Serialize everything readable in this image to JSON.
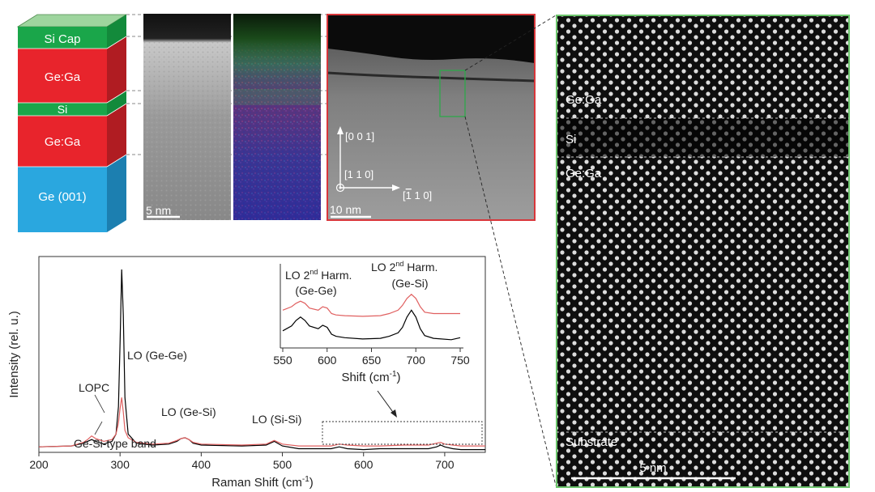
{
  "layer_stack": {
    "layers": [
      "Si Cap",
      "Ge:Ga",
      "Si",
      "Ge:Ga",
      "Ge (001)"
    ],
    "colors": {
      "si": "#1aa64a",
      "gega": "#e8242c",
      "substrate": "#2aa7df"
    }
  },
  "stem_strip": {
    "scalebar": "5 nm"
  },
  "eds_strip": {},
  "overview": {
    "axes": [
      "[0 0 1]",
      "[1 1 0]",
      "[Ā1 1 0]"
    ],
    "axis_parts": {
      "a3_open": "[",
      "a3_bar": "1",
      "a3_rest": " 1 0]"
    },
    "scalebar": "10 nm"
  },
  "hrstem": {
    "labels": [
      "Ge:Ga",
      "Si",
      "Ge:Ga",
      "Substrate"
    ],
    "scalebar": "5 nm"
  },
  "raman": {
    "xlabel_main": "Raman Shift (cm",
    "xlabel_sup": "-1",
    "xlabel_close": ")",
    "ylabel": "Intensity (rel. u.)",
    "annotations": [
      "LOPC",
      "LO (Ge-Ge)",
      "LO (Ge-Si)",
      "LO (Si-Si)",
      "Ge-Si-type band"
    ],
    "inset": {
      "label1_a": "LO 2",
      "label1_sup": "nd",
      "label1_b": " Harm.",
      "label1_c": "(Ge-Ge)",
      "label2_a": "LO 2",
      "label2_sup": "nd",
      "label2_b": " Harm.",
      "label2_c": "(Ge-Si)",
      "xlabel_main": "Shift (cm",
      "xlabel_sup": "-1",
      "xlabel_close": ")"
    }
  },
  "chart_data": [
    {
      "type": "line",
      "title": "",
      "xlabel": "Raman Shift (cm-1)",
      "ylabel": "Intensity (rel. u.)",
      "xlim": [
        200,
        750
      ],
      "xticks": [
        200,
        300,
        400,
        500,
        600,
        700
      ],
      "yticks_shown": false,
      "series": [
        {
          "color": "#000000",
          "x": [
            200,
            240,
            255,
            260,
            265,
            270,
            280,
            290,
            295,
            298,
            300,
            302,
            304,
            306,
            310,
            320,
            340,
            360,
            370,
            375,
            380,
            385,
            390,
            400,
            450,
            480,
            490,
            500,
            520,
            560,
            570,
            580,
            600,
            620,
            650,
            680,
            690,
            695,
            700,
            710,
            720,
            750
          ],
          "y": [
            0.03,
            0.035,
            0.05,
            0.06,
            0.07,
            0.06,
            0.045,
            0.06,
            0.1,
            0.25,
            0.6,
            1.0,
            0.75,
            0.3,
            0.1,
            0.05,
            0.04,
            0.045,
            0.06,
            0.075,
            0.08,
            0.07,
            0.05,
            0.04,
            0.035,
            0.04,
            0.06,
            0.035,
            0.02,
            0.02,
            0.03,
            0.02,
            0.015,
            0.02,
            0.02,
            0.02,
            0.03,
            0.04,
            0.03,
            0.02,
            0.015,
            0.015
          ]
        },
        {
          "color": "#e06060",
          "x": [
            200,
            240,
            255,
            260,
            265,
            270,
            280,
            290,
            295,
            298,
            300,
            302,
            304,
            306,
            310,
            320,
            340,
            360,
            370,
            375,
            380,
            385,
            390,
            400,
            450,
            480,
            490,
            500,
            520,
            560,
            570,
            580,
            600,
            620,
            650,
            680,
            690,
            695,
            700,
            710,
            720,
            750
          ],
          "y": [
            0.03,
            0.035,
            0.055,
            0.07,
            0.09,
            0.075,
            0.06,
            0.07,
            0.1,
            0.16,
            0.24,
            0.3,
            0.22,
            0.12,
            0.08,
            0.055,
            0.045,
            0.05,
            0.065,
            0.075,
            0.08,
            0.07,
            0.055,
            0.045,
            0.04,
            0.045,
            0.065,
            0.045,
            0.035,
            0.035,
            0.045,
            0.04,
            0.035,
            0.035,
            0.04,
            0.04,
            0.05,
            0.055,
            0.045,
            0.04,
            0.035,
            0.035
          ]
        }
      ]
    },
    {
      "type": "line",
      "title": "",
      "xlabel": "Shift (cm-1)",
      "ylabel": "",
      "xlim": [
        550,
        750
      ],
      "xticks": [
        550,
        600,
        650,
        700,
        750
      ],
      "series": [
        {
          "color": "#e06060",
          "x": [
            550,
            560,
            565,
            570,
            575,
            580,
            590,
            595,
            600,
            605,
            610,
            620,
            640,
            660,
            670,
            680,
            685,
            690,
            695,
            700,
            705,
            710,
            720,
            740,
            750
          ],
          "y": [
            0.55,
            0.6,
            0.65,
            0.68,
            0.65,
            0.58,
            0.55,
            0.6,
            0.58,
            0.5,
            0.48,
            0.47,
            0.46,
            0.47,
            0.5,
            0.55,
            0.62,
            0.72,
            0.78,
            0.72,
            0.6,
            0.52,
            0.5,
            0.5,
            0.5
          ]
        },
        {
          "color": "#000000",
          "x": [
            550,
            560,
            565,
            570,
            575,
            580,
            590,
            595,
            600,
            605,
            610,
            620,
            640,
            660,
            670,
            680,
            685,
            690,
            695,
            700,
            705,
            710,
            720,
            740,
            750
          ],
          "y": [
            0.25,
            0.32,
            0.4,
            0.45,
            0.4,
            0.32,
            0.28,
            0.33,
            0.3,
            0.2,
            0.17,
            0.15,
            0.13,
            0.14,
            0.17,
            0.22,
            0.3,
            0.45,
            0.55,
            0.45,
            0.28,
            0.18,
            0.14,
            0.12,
            0.15
          ]
        }
      ]
    }
  ]
}
